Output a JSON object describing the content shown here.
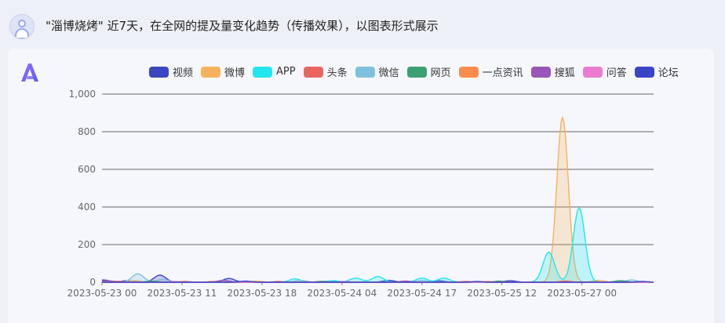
{
  "header": {
    "title": "\"淄博烧烤\" 近7天，在全网的提及量变化趋势（传播效果），以图表形式展示"
  },
  "chart_data": {
    "type": "area",
    "title": "",
    "xlabel": "",
    "ylabel": "",
    "ylim": [
      0,
      1000
    ],
    "y_ticks": [
      "0",
      "200",
      "400",
      "600",
      "800",
      "1,000"
    ],
    "x_tick_labels": [
      "2023-05-23 00",
      "2023-05-23 11",
      "2023-05-23 18",
      "2023-05-24 04",
      "2023-05-24 17",
      "2023-05-25 12",
      "2023-05-27 00"
    ],
    "legend_position": "top",
    "grid": true,
    "series": [
      {
        "name": "视频",
        "color": "#3a47c2",
        "peaks": [
          [
            0.3,
            12
          ],
          [
            4.5,
            8
          ],
          [
            10.5,
            38
          ],
          [
            23,
            20
          ],
          [
            41.5,
            6
          ],
          [
            52,
            10
          ],
          [
            61,
            8
          ],
          [
            74,
            8
          ]
        ]
      },
      {
        "name": "微博",
        "color": "#f5b25a",
        "peaks": [
          [
            2,
            6
          ],
          [
            6,
            8
          ],
          [
            28,
            6
          ],
          [
            55,
            6
          ],
          [
            83.5,
            875
          ],
          [
            90,
            10
          ]
        ]
      },
      {
        "name": "APP",
        "color": "#21e6f0",
        "peaks": [
          [
            35,
            18
          ],
          [
            42,
            8
          ],
          [
            46,
            22
          ],
          [
            50,
            30
          ],
          [
            58,
            22
          ],
          [
            62,
            22
          ],
          [
            81,
            160
          ],
          [
            86.5,
            395
          ]
        ]
      },
      {
        "name": "头条",
        "color": "#e8665f",
        "peaks": [
          [
            3,
            5
          ],
          [
            15,
            4
          ],
          [
            32,
            4
          ],
          [
            66,
            4
          ],
          [
            84,
            6
          ]
        ]
      },
      {
        "name": "微信",
        "color": "#7ec1de",
        "peaks": [
          [
            6.5,
            45
          ],
          [
            11,
            15
          ],
          [
            36,
            10
          ],
          [
            58,
            10
          ],
          [
            96,
            12
          ]
        ]
      },
      {
        "name": "网页",
        "color": "#3ca073",
        "peaks": [
          [
            9,
            6
          ],
          [
            40,
            5
          ],
          [
            72,
            6
          ],
          [
            94,
            8
          ]
        ]
      },
      {
        "name": "一点资讯",
        "color": "#fb8c4e",
        "peaks": [
          [
            20,
            4
          ],
          [
            70,
            4
          ]
        ]
      },
      {
        "name": "搜狐",
        "color": "#9a55b8",
        "peaks": [
          [
            1,
            8
          ],
          [
            22,
            10
          ],
          [
            55,
            6
          ]
        ]
      },
      {
        "name": "问答",
        "color": "#ea7ccf",
        "peaks": [
          [
            13,
            4
          ],
          [
            44,
            4
          ]
        ]
      },
      {
        "name": "论坛",
        "color": "#3a45c6",
        "peaks": [
          [
            26,
            6
          ],
          [
            68,
            4
          ],
          [
            98,
            4
          ]
        ]
      }
    ]
  }
}
